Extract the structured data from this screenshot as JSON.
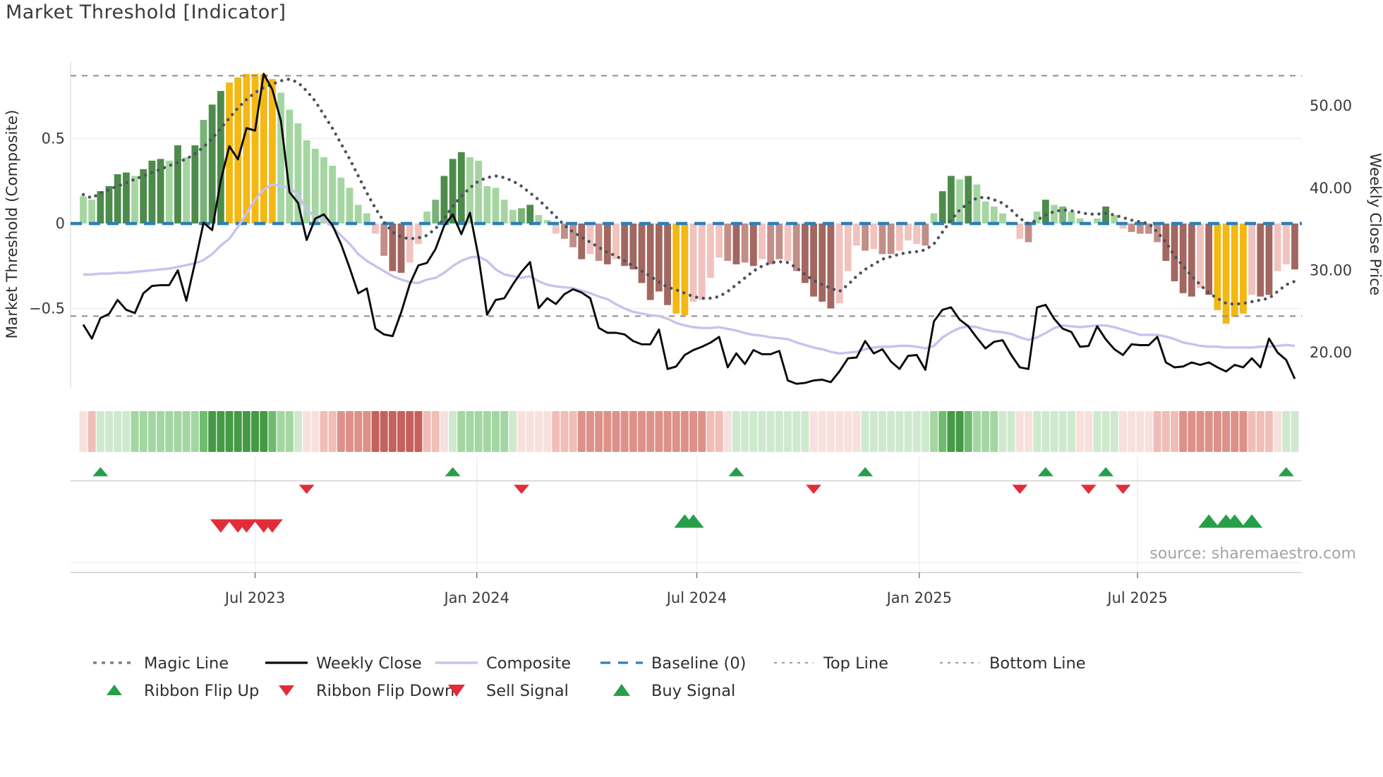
{
  "title": "Market Threshold [Indicator]",
  "source_note": "source: sharemaestro.com",
  "chart_data": {
    "type": "bar",
    "subtype": "weekly composite histogram with overlaid lines, ribbon heat strip and trade signals",
    "title": "Market Threshold [Indicator]",
    "left_axis": {
      "label": "Market Threshold (Composite)",
      "tick_labels": [
        "0.5",
        "0",
        "−0.5"
      ],
      "tick_values": [
        0.5,
        0,
        -0.5
      ],
      "range": [
        -0.97,
        0.95
      ]
    },
    "right_axis": {
      "label": "Weekly Close Price",
      "tick_labels": [
        "50.00",
        "40.00",
        "30.00",
        "20.00"
      ],
      "tick_values": [
        50,
        40,
        30,
        20
      ],
      "range": [
        15.7,
        55.3
      ]
    },
    "x_ticks": [
      {
        "label": "Jul 2023",
        "pos": 20.0
      },
      {
        "label": "Jan 2024",
        "pos": 45.8
      },
      {
        "label": "Jul 2024",
        "pos": 71.4
      },
      {
        "label": "Jan 2025",
        "pos": 97.3
      },
      {
        "label": "Jul 2025",
        "pos": 122.7
      }
    ],
    "baseline_value": 0,
    "top_line_value": 0.87,
    "bottom_line_value": -0.545,
    "n_weeks": 142,
    "histogram": [
      0.16,
      0.14,
      0.19,
      0.22,
      0.29,
      0.3,
      0.28,
      0.32,
      0.37,
      0.38,
      0.37,
      0.46,
      0.39,
      0.46,
      0.61,
      0.7,
      0.78,
      0.83,
      0.86,
      0.88,
      0.88,
      0.88,
      0.85,
      0.77,
      0.67,
      0.59,
      0.49,
      0.44,
      0.39,
      0.34,
      0.27,
      0.21,
      0.11,
      0.06,
      -0.06,
      -0.19,
      -0.28,
      -0.29,
      -0.23,
      -0.12,
      0.07,
      0.14,
      0.28,
      0.38,
      0.42,
      0.39,
      0.37,
      0.22,
      0.21,
      0.14,
      0.08,
      0.09,
      0.11,
      0.05,
      0.02,
      -0.06,
      -0.09,
      -0.14,
      -0.21,
      -0.18,
      -0.22,
      -0.24,
      -0.21,
      -0.25,
      -0.27,
      -0.35,
      -0.45,
      -0.4,
      -0.48,
      -0.53,
      -0.54,
      -0.46,
      -0.45,
      -0.32,
      -0.2,
      -0.22,
      -0.24,
      -0.23,
      -0.25,
      -0.21,
      -0.24,
      -0.21,
      -0.22,
      -0.28,
      -0.35,
      -0.43,
      -0.46,
      -0.5,
      -0.47,
      -0.28,
      -0.13,
      -0.16,
      -0.15,
      -0.18,
      -0.18,
      -0.16,
      -0.1,
      -0.12,
      -0.13,
      0.06,
      0.19,
      0.28,
      0.26,
      0.28,
      0.23,
      0.13,
      0.1,
      0.06,
      0.0,
      -0.09,
      -0.11,
      0.07,
      0.14,
      0.11,
      0.1,
      0.07,
      0.03,
      -0.01,
      0.03,
      0.1,
      0.05,
      -0.03,
      -0.05,
      -0.06,
      -0.06,
      -0.11,
      -0.22,
      -0.34,
      -0.41,
      -0.43,
      -0.38,
      -0.42,
      -0.51,
      -0.59,
      -0.55,
      -0.53,
      -0.42,
      -0.43,
      -0.42,
      -0.28,
      -0.24,
      -0.27
    ],
    "histogram_color_code": [
      "lg",
      "lg",
      "dg",
      "dg",
      "dg",
      "dg",
      "lg",
      "dg",
      "dg",
      "dg",
      "lg",
      "dg",
      "lg",
      "dg",
      "mg",
      "dg",
      "dg",
      "y",
      "y",
      "y",
      "y",
      "y",
      "y",
      "lg",
      "lg",
      "lg",
      "lg",
      "lg",
      "lg",
      "lg",
      "lg",
      "lg",
      "lg",
      "lg",
      "lp",
      "mr",
      "dr",
      "dr",
      "lp",
      "lp",
      "lg",
      "mg",
      "dg",
      "dg",
      "dg",
      "lg",
      "lg",
      "lg",
      "lg",
      "lg",
      "lg",
      "mg",
      "dg",
      "lg",
      "lg",
      "lp",
      "mr",
      "mr",
      "dr",
      "lp",
      "mr",
      "dr",
      "lp",
      "dr",
      "dr",
      "dr",
      "dr",
      "dr",
      "dr",
      "y",
      "y",
      "lp",
      "lp",
      "lp",
      "lp",
      "mr",
      "dr",
      "mr",
      "dr",
      "lp",
      "mr",
      "mr",
      "lp",
      "mr",
      "dr",
      "dr",
      "dr",
      "dr",
      "lp",
      "lp",
      "lp",
      "mr",
      "lp",
      "mr",
      "mr",
      "lp",
      "lp",
      "lp",
      "mr",
      "lg",
      "dg",
      "dg",
      "lg",
      "dg",
      "lg",
      "lg",
      "lg",
      "lg",
      "lg",
      "lp",
      "mr",
      "lg",
      "dg",
      "lg",
      "mg",
      "lg",
      "lg",
      "lp",
      "lg",
      "dg",
      "lg",
      "lp",
      "mr",
      "mr",
      "mr",
      "mr",
      "dr",
      "dr",
      "dr",
      "dr",
      "lp",
      "dr",
      "y",
      "y",
      "y",
      "y",
      "lp",
      "dr",
      "dr",
      "lp",
      "lp",
      "dr"
    ],
    "weekly_close": [
      23.4,
      21.7,
      24.2,
      24.7,
      26.4,
      25.2,
      24.8,
      27.2,
      28.1,
      28.2,
      28.2,
      30.0,
      26.3,
      30.9,
      35.8,
      34.9,
      40.9,
      45.1,
      43.5,
      47.3,
      47.0,
      53.9,
      52.0,
      48.2,
      39.5,
      38.2,
      33.7,
      36.3,
      36.8,
      35.5,
      33.2,
      30.3,
      27.2,
      27.8,
      22.9,
      22.2,
      22.0,
      24.9,
      28.3,
      30.6,
      30.9,
      32.6,
      35.4,
      36.8,
      34.4,
      37.0,
      31.6,
      24.6,
      26.4,
      26.6,
      28.3,
      29.8,
      31.0,
      25.4,
      26.6,
      25.9,
      27.1,
      27.7,
      27.3,
      26.6,
      23.0,
      22.4,
      22.4,
      22.2,
      21.4,
      21.0,
      21.0,
      22.8,
      18.0,
      18.3,
      19.7,
      20.3,
      20.7,
      21.2,
      21.9,
      18.2,
      19.9,
      18.6,
      20.3,
      19.8,
      19.8,
      20.2,
      16.6,
      16.2,
      16.3,
      16.6,
      16.7,
      16.4,
      17.7,
      19.3,
      19.4,
      21.4,
      19.9,
      20.4,
      18.9,
      18.0,
      19.6,
      19.7,
      17.9,
      23.8,
      25.2,
      25.5,
      24.0,
      23.2,
      21.8,
      20.5,
      21.3,
      21.5,
      19.7,
      18.2,
      18.0,
      25.5,
      25.8,
      24.1,
      22.9,
      22.5,
      20.7,
      20.8,
      23.2,
      21.6,
      20.4,
      19.7,
      21.0,
      20.9,
      20.9,
      21.9,
      18.8,
      18.2,
      18.3,
      18.8,
      18.5,
      18.8,
      18.2,
      17.7,
      18.5,
      18.2,
      19.3,
      18.2,
      21.7,
      20.0,
      19.1,
      16.8
    ],
    "composite": [
      -0.3,
      -0.3,
      -0.295,
      -0.295,
      -0.29,
      -0.29,
      -0.285,
      -0.28,
      -0.275,
      -0.27,
      -0.265,
      -0.255,
      -0.245,
      -0.235,
      -0.215,
      -0.18,
      -0.13,
      -0.09,
      -0.02,
      0.06,
      0.14,
      0.2,
      0.23,
      0.22,
      0.21,
      0.17,
      0.08,
      0.04,
      0.02,
      -0.02,
      -0.07,
      -0.12,
      -0.18,
      -0.22,
      -0.25,
      -0.28,
      -0.31,
      -0.33,
      -0.345,
      -0.35,
      -0.33,
      -0.32,
      -0.29,
      -0.25,
      -0.22,
      -0.2,
      -0.195,
      -0.22,
      -0.27,
      -0.3,
      -0.31,
      -0.32,
      -0.31,
      -0.34,
      -0.36,
      -0.37,
      -0.375,
      -0.38,
      -0.395,
      -0.41,
      -0.43,
      -0.445,
      -0.475,
      -0.5,
      -0.52,
      -0.53,
      -0.54,
      -0.545,
      -0.56,
      -0.585,
      -0.6,
      -0.61,
      -0.615,
      -0.615,
      -0.61,
      -0.62,
      -0.63,
      -0.645,
      -0.655,
      -0.66,
      -0.67,
      -0.675,
      -0.68,
      -0.7,
      -0.715,
      -0.73,
      -0.74,
      -0.755,
      -0.765,
      -0.76,
      -0.755,
      -0.74,
      -0.73,
      -0.725,
      -0.725,
      -0.72,
      -0.72,
      -0.725,
      -0.735,
      -0.72,
      -0.67,
      -0.64,
      -0.615,
      -0.605,
      -0.61,
      -0.625,
      -0.635,
      -0.64,
      -0.65,
      -0.67,
      -0.685,
      -0.67,
      -0.645,
      -0.615,
      -0.6,
      -0.605,
      -0.61,
      -0.605,
      -0.6,
      -0.6,
      -0.61,
      -0.625,
      -0.64,
      -0.655,
      -0.655,
      -0.655,
      -0.665,
      -0.68,
      -0.7,
      -0.71,
      -0.72,
      -0.725,
      -0.725,
      -0.73,
      -0.73,
      -0.73,
      -0.73,
      -0.725,
      -0.725,
      -0.72,
      -0.715,
      -0.72
    ],
    "magic_line": [
      0.17,
      0.15,
      0.18,
      0.2,
      0.22,
      0.24,
      0.26,
      0.28,
      0.3,
      0.32,
      0.34,
      0.36,
      0.38,
      0.41,
      0.45,
      0.5,
      0.56,
      0.62,
      0.68,
      0.73,
      0.77,
      0.8,
      0.82,
      0.84,
      0.85,
      0.83,
      0.78,
      0.72,
      0.64,
      0.56,
      0.47,
      0.38,
      0.28,
      0.18,
      0.09,
      0.01,
      -0.05,
      -0.08,
      -0.09,
      -0.085,
      -0.07,
      -0.03,
      0.03,
      0.1,
      0.16,
      0.21,
      0.25,
      0.27,
      0.28,
      0.27,
      0.25,
      0.22,
      0.18,
      0.14,
      0.09,
      0.04,
      -0.01,
      -0.05,
      -0.08,
      -0.11,
      -0.14,
      -0.17,
      -0.19,
      -0.22,
      -0.25,
      -0.28,
      -0.31,
      -0.345,
      -0.375,
      -0.39,
      -0.41,
      -0.43,
      -0.44,
      -0.44,
      -0.43,
      -0.4,
      -0.36,
      -0.32,
      -0.28,
      -0.25,
      -0.23,
      -0.225,
      -0.23,
      -0.26,
      -0.3,
      -0.335,
      -0.36,
      -0.38,
      -0.4,
      -0.36,
      -0.31,
      -0.27,
      -0.24,
      -0.21,
      -0.195,
      -0.18,
      -0.17,
      -0.165,
      -0.155,
      -0.12,
      -0.05,
      0.02,
      0.08,
      0.12,
      0.15,
      0.155,
      0.14,
      0.12,
      0.08,
      0.03,
      0.0,
      0.02,
      0.05,
      0.07,
      0.08,
      0.075,
      0.065,
      0.055,
      0.055,
      0.06,
      0.05,
      0.035,
      0.02,
      0.01,
      0.0,
      -0.05,
      -0.11,
      -0.19,
      -0.25,
      -0.31,
      -0.36,
      -0.41,
      -0.44,
      -0.47,
      -0.475,
      -0.47,
      -0.46,
      -0.45,
      -0.44,
      -0.4,
      -0.36,
      -0.34
    ],
    "ribbon": [
      -1,
      -2,
      1,
      1,
      1,
      1,
      2,
      2,
      2,
      2,
      2,
      2,
      2,
      2,
      3,
      4,
      4,
      4,
      4,
      4,
      4,
      4,
      3,
      2,
      2,
      1,
      -1,
      -1,
      -2,
      -2,
      -3,
      -3,
      -3,
      -3,
      -4,
      -4,
      -4,
      -4,
      -4,
      -4,
      -2,
      -2,
      -1,
      1,
      2,
      2,
      2,
      2,
      2,
      2,
      1,
      -1,
      -1,
      -1,
      -1,
      -2,
      -2,
      -2,
      -3,
      -3,
      -3,
      -3,
      -3,
      -3,
      -3,
      -3,
      -3,
      -3,
      -3,
      -3,
      -3,
      -3,
      -3,
      -2,
      -2,
      -1,
      1,
      1,
      1,
      1,
      1,
      1,
      1,
      1,
      1,
      -1,
      -1,
      -1,
      -1,
      -1,
      -1,
      1,
      1,
      1,
      1,
      1,
      1,
      1,
      1,
      2,
      3,
      4,
      4,
      3,
      2,
      2,
      2,
      1,
      1,
      -1,
      -1,
      1,
      1,
      1,
      1,
      1,
      -1,
      -1,
      1,
      1,
      1,
      -1,
      -1,
      -1,
      -1,
      -2,
      -2,
      -2,
      -3,
      -3,
      -3,
      -3,
      -3,
      -3,
      -3,
      -3,
      -2,
      -2,
      -2,
      -1,
      1,
      1
    ],
    "signals": {
      "ribbon_flip_up": [
        2,
        43,
        76,
        91,
        112,
        119,
        140
      ],
      "ribbon_flip_down": [
        26,
        51,
        85,
        109,
        117,
        121
      ],
      "sell_signal": [
        16,
        18,
        19,
        21,
        22
      ],
      "buy_signal": [
        70,
        71,
        131,
        133,
        134,
        136
      ]
    },
    "legend_position": "bottom",
    "grid": "horizontal at ±0.5 in main panel, vertical month lines in signal panel"
  },
  "colors": {
    "bar_light_green": "#a5d6a2",
    "bar_medium_green": "#79b377",
    "bar_dark_green": "#4d8b4b",
    "bar_yellow": "#f4b813",
    "bar_light_pink": "#f0c3bf",
    "bar_medium_red": "#c28e88",
    "bar_dark_red": "#a26760",
    "ribbon_g1": "#cfe9cf",
    "ribbon_g2": "#a3d6a3",
    "ribbon_g3": "#6fbb6f",
    "ribbon_g4": "#459a45",
    "ribbon_r1": "#f7e0dd",
    "ribbon_r2": "#f0bdb7",
    "ribbon_r3": "#dd9189",
    "ribbon_r4": "#c4615c",
    "weekly_close": "#0a0a0a",
    "composite_line": "#c8c2ee",
    "magic_line": "#4d525b",
    "baseline": "#2c7fb8",
    "top_bottom_line": "#8e8e8e",
    "signal_green": "#279e4a",
    "signal_red": "#e12d39",
    "grid": "#eceff4",
    "text_dark": "#3a3a3a",
    "text_muted": "#a3a3a3"
  },
  "legend": {
    "row1": [
      {
        "label": "Magic Line",
        "marker": "magic"
      },
      {
        "label": "Weekly Close",
        "marker": "close"
      },
      {
        "label": "Composite",
        "marker": "composite"
      },
      {
        "label": "Baseline (0)",
        "marker": "baseline"
      },
      {
        "label": "Top Line",
        "marker": "thindash"
      },
      {
        "label": "Bottom Line",
        "marker": "thindash"
      }
    ],
    "row2": [
      {
        "label": "Ribbon Flip Up",
        "marker": "triup"
      },
      {
        "label": "Ribbon Flip Down",
        "marker": "tridown"
      },
      {
        "label": "Sell Signal",
        "marker": "tridownbig"
      },
      {
        "label": "Buy Signal",
        "marker": "triupbig"
      }
    ]
  }
}
